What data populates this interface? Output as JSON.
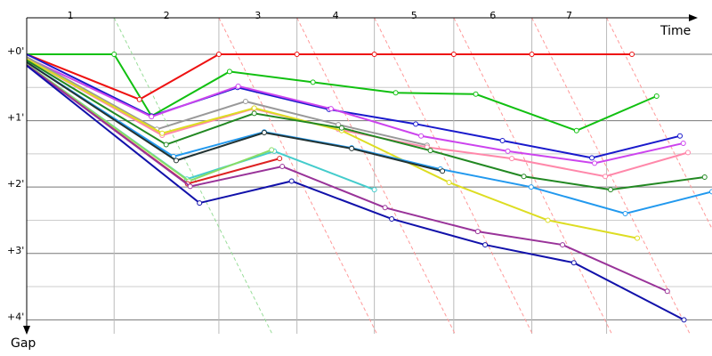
{
  "chart_data": {
    "type": "line",
    "x_label": "Time",
    "y_label": "Gap",
    "xlim": [
      0,
      10.27
    ],
    "ylim": [
      -0.55,
      4.21
    ],
    "yticks": [
      {
        "value": 0,
        "label": "+0'"
      },
      {
        "value": 1,
        "label": "+1'"
      },
      {
        "value": 2,
        "label": "+2'"
      },
      {
        "value": 3,
        "label": "+3'"
      },
      {
        "value": 4,
        "label": "+4'"
      }
    ],
    "minor_yticks": [
      0.5,
      1.5,
      2.5,
      3.5
    ],
    "lap_labels": [
      "1",
      "2",
      "3",
      "4",
      "5",
      "6",
      "7"
    ],
    "lap_ends": [
      1.31,
      2.88,
      4.05,
      5.21,
      6.4,
      7.57,
      8.69
    ],
    "grid": true,
    "series": [
      {
        "color": "#11c011",
        "x": [
          0,
          1.31,
          1.87,
          3.04,
          4.29,
          5.53,
          6.73,
          8.24,
          9.44
        ],
        "values": [
          0,
          0,
          0.93,
          0.26,
          0.42,
          0.58,
          0.6,
          1.15,
          0.63
        ]
      },
      {
        "color": "#ee1111",
        "x": [
          0,
          1.69,
          2.88,
          4.05,
          5.21,
          6.4,
          7.57,
          9.07
        ],
        "values": [
          0,
          0.68,
          0,
          0,
          0,
          0,
          0,
          0
        ]
      },
      {
        "color": "#1a1acc",
        "x": [
          0,
          1.87,
          3.16,
          4.53,
          5.83,
          7.13,
          8.47,
          9.79
        ],
        "values": [
          0,
          0.93,
          0.5,
          0.83,
          1.05,
          1.3,
          1.56,
          1.23
        ]
      },
      {
        "color": "#cc44ee",
        "x": [
          0,
          1.87,
          3.17,
          4.56,
          5.91,
          7.21,
          8.51,
          9.84
        ],
        "values": [
          0.05,
          0.94,
          0.48,
          0.82,
          1.23,
          1.46,
          1.64,
          1.34
        ]
      },
      {
        "color": "#999999",
        "x": [
          0,
          1.95,
          3.28,
          4.67,
          6.0
        ],
        "values": [
          0.04,
          1.13,
          0.71,
          1.06,
          1.37
        ]
      },
      {
        "color": "#ff88aa",
        "x": [
          0,
          2.03,
          3.4,
          4.67,
          6.0,
          7.27,
          8.67,
          9.91
        ],
        "values": [
          0.07,
          1.22,
          0.82,
          1.13,
          1.4,
          1.57,
          1.84,
          1.48
        ]
      },
      {
        "color": "#dddd22",
        "x": [
          0,
          2.03,
          3.41,
          4.72,
          6.33,
          7.81,
          9.15
        ],
        "values": [
          0.07,
          1.19,
          0.81,
          1.15,
          1.93,
          2.5,
          2.77
        ]
      },
      {
        "color": "#228822",
        "x": [
          0,
          2.09,
          3.41,
          4.72,
          6.05,
          7.45,
          8.75,
          10.16
        ],
        "values": [
          0.09,
          1.36,
          0.89,
          1.11,
          1.45,
          1.84,
          2.04,
          1.85
        ]
      },
      {
        "color": "#2299ee",
        "x": [
          0,
          2.2,
          3.56,
          4.87,
          6.2,
          7.56,
          8.97,
          10.27
        ],
        "values": [
          0.12,
          1.54,
          1.17,
          1.41,
          1.73,
          2.0,
          2.4,
          2.07
        ]
      },
      {
        "color": "#223333",
        "x": [
          0,
          2.24,
          3.56,
          4.87,
          6.23
        ],
        "values": [
          0.12,
          1.6,
          1.18,
          1.42,
          1.76
        ]
      },
      {
        "color": "#44cccc",
        "x": [
          0,
          2.4,
          3.71,
          5.21
        ],
        "values": [
          0.15,
          1.88,
          1.46,
          2.04
        ]
      },
      {
        "color": "#88dd66",
        "x": [
          0,
          2.43,
          3.67
        ],
        "values": [
          0.15,
          1.91,
          1.44
        ]
      },
      {
        "color": "#dd2222",
        "x": [
          0,
          2.41,
          3.79
        ],
        "values": [
          0.16,
          1.95,
          1.57
        ]
      },
      {
        "color": "#993399",
        "x": [
          0,
          2.45,
          3.83,
          5.37,
          6.76,
          8.03,
          9.6
        ],
        "values": [
          0.16,
          1.99,
          1.69,
          2.31,
          2.67,
          2.87,
          3.57
        ]
      },
      {
        "color": "#1111aa",
        "x": [
          0,
          2.59,
          3.97,
          5.47,
          6.87,
          8.2,
          9.85
        ],
        "values": [
          0.17,
          2.24,
          1.91,
          2.48,
          2.87,
          3.14,
          4.0
        ]
      }
    ]
  }
}
